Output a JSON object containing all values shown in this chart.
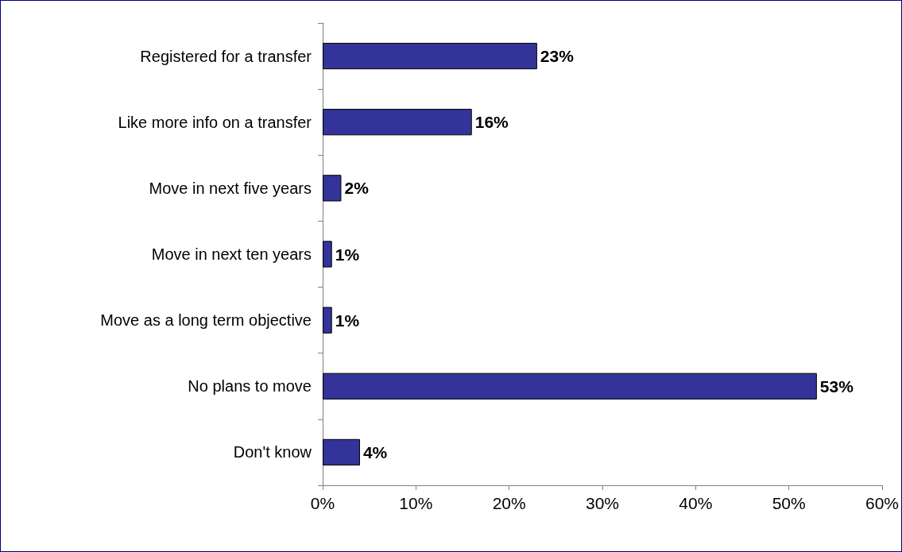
{
  "chart_data": {
    "type": "bar",
    "orientation": "horizontal",
    "categories": [
      "Registered for a transfer",
      "Like more info on a transfer",
      "Move in next five years",
      "Move in next ten years",
      "Move as a long term objective",
      "No plans to move",
      "Don't know"
    ],
    "values": [
      23,
      16,
      2,
      1,
      1,
      53,
      4
    ],
    "value_labels": [
      "23%",
      "16%",
      "2%",
      "1%",
      "1%",
      "53%",
      "4%"
    ],
    "color": "#333399",
    "xlim": [
      0,
      60
    ],
    "xticks": [
      {
        "value": 0,
        "label": "0%"
      },
      {
        "value": 10,
        "label": "10%"
      },
      {
        "value": 20,
        "label": "20%"
      },
      {
        "value": 30,
        "label": "30%"
      },
      {
        "value": 40,
        "label": "40%"
      },
      {
        "value": 50,
        "label": "50%"
      },
      {
        "value": 60,
        "label": "60%"
      }
    ],
    "grid": false
  }
}
